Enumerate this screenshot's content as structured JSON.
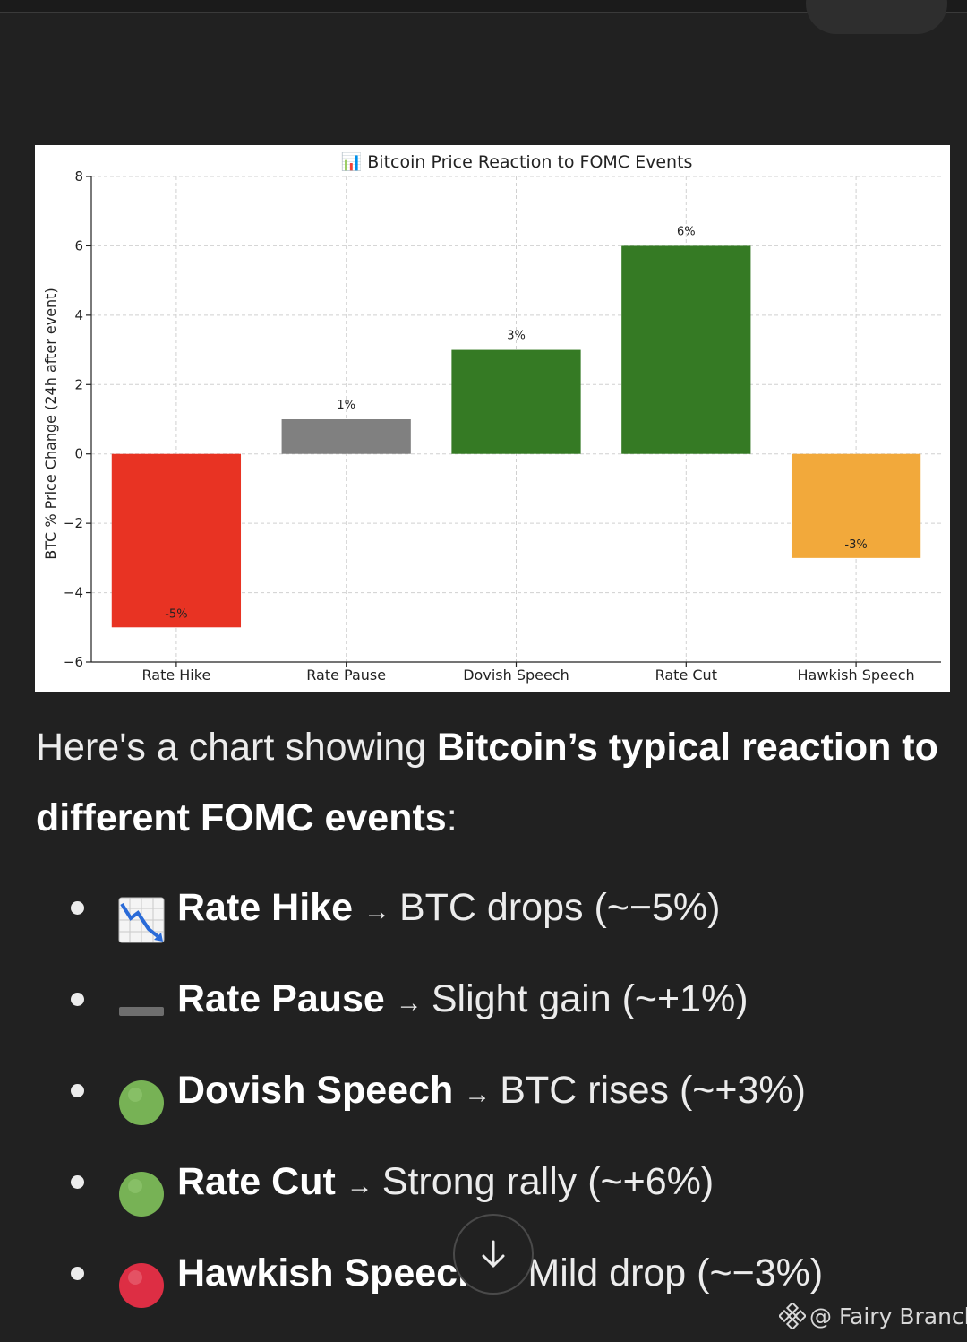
{
  "chart_data": {
    "type": "bar",
    "title": "📊 Bitcoin Price Reaction to FOMC Events",
    "categories": [
      "Rate Hike",
      "Rate Pause",
      "Dovish Speech",
      "Rate Cut",
      "Hawkish Speech"
    ],
    "values": [
      -5,
      1,
      3,
      6,
      -3
    ],
    "data_labels": [
      "-5%",
      "1%",
      "3%",
      "6%",
      "-3%"
    ],
    "colors": [
      "#e83323",
      "#808080",
      "#357a24",
      "#357a24",
      "#f2a93b"
    ],
    "ylabel": "BTC % Price Change (24h after event)",
    "xlabel": "",
    "ylim": [
      -6,
      8
    ],
    "yticks": [
      -6,
      -4,
      -2,
      0,
      2,
      4,
      6,
      8
    ],
    "ytick_labels": [
      "−6",
      "−4",
      "−2",
      "0",
      "2",
      "4",
      "6",
      "8"
    ],
    "grid": true
  },
  "message": {
    "intro_1": "Here's a chart showing ",
    "intro_bold": "Bitcoin’s typical reaction to different FOMC events",
    "intro_end": ":"
  },
  "bullets": [
    {
      "icon": "chart-decreasing-icon",
      "event": "Rate Hike",
      "arrow": "→",
      "desc": "BTC drops (~−5%)"
    },
    {
      "icon": "minus-icon",
      "event": "Rate Pause",
      "arrow": "→",
      "desc": "Slight gain (~+1%)"
    },
    {
      "icon": "green-circle-icon",
      "event": "Dovish Speech",
      "arrow": "→",
      "desc": "BTC rises (~+3%)"
    },
    {
      "icon": "green-circle-icon",
      "event": "Rate Cut",
      "arrow": "→",
      "desc": "Strong rally (~+6%)"
    },
    {
      "icon": "red-circle-icon",
      "event": "Hawkish Speech",
      "arrow": "→",
      "desc": "Mild drop (~−3%)"
    }
  ],
  "watermark": {
    "text": "@ Fairy Branch",
    "icon": "binance-logo-icon"
  }
}
